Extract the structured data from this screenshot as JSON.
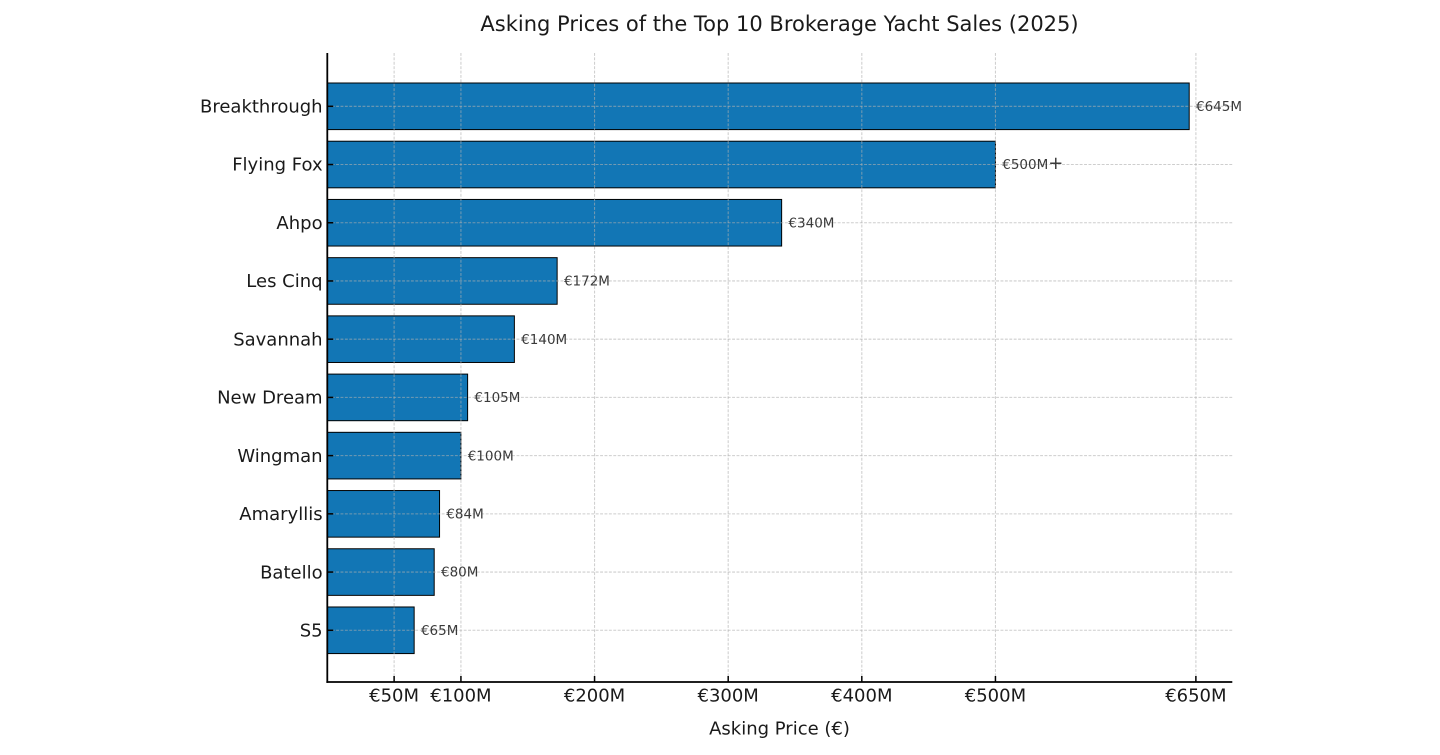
{
  "figure": {
    "background_color": "#ffffff"
  },
  "chart_data": {
    "type": "bar",
    "orientation": "horizontal",
    "title": "Asking Prices of the Top 10 Brokerage Yacht Sales (2025)",
    "xlabel": "Asking Price (€)",
    "ylabel": "",
    "categories": [
      "Breakthrough",
      "Flying Fox",
      "Ahpo",
      "Les Cinq",
      "Savannah",
      "New Dream",
      "Wingman",
      "Amaryllis",
      "Batello",
      "S5"
    ],
    "values": [
      645,
      500,
      340,
      172,
      140,
      105,
      100,
      84,
      80,
      65
    ],
    "value_labels": [
      "€645M",
      "€500M+",
      "€340M",
      "€172M",
      "€140M",
      "€105M",
      "€100M",
      "€84M",
      "€80M",
      "€65M"
    ],
    "units": "millions of euros",
    "xlim": [
      0,
      677.25
    ],
    "xticks": {
      "values": [
        50,
        100,
        200,
        300,
        400,
        500,
        650
      ],
      "labels": [
        "€50M",
        "€100M",
        "€200M",
        "€300M",
        "€400M",
        "€500M",
        "€650M"
      ]
    },
    "grid": {
      "visible": true,
      "style": "dashed",
      "axis": "both",
      "color": "#b0b0b0"
    },
    "legend": null,
    "colors": {
      "bar_fill": "#1276b5",
      "bar_edge": "#000000",
      "spine": "#000000",
      "tick": "#000000",
      "title_text": "#1a1a1a",
      "tick_text": "#1a1a1a",
      "axis_label_text": "#1a1a1a",
      "value_label_text": "#3a3a3a"
    }
  }
}
